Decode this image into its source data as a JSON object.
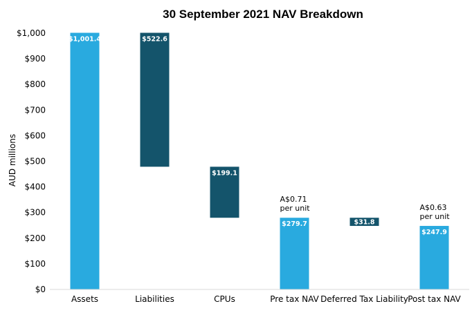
{
  "chart_data": {
    "type": "bar",
    "subtype": "waterfall",
    "title": "30 September 2021 NAV Breakdown",
    "xlabel": "",
    "ylabel": "AUD millions",
    "ylim": [
      0,
      1000
    ],
    "yticks": [
      0,
      100,
      200,
      300,
      400,
      500,
      600,
      700,
      800,
      900,
      1000
    ],
    "ytick_labels": [
      "$0",
      "$100",
      "$200",
      "$300",
      "$400",
      "$500",
      "$600",
      "$700",
      "$800",
      "$900",
      "$1,000"
    ],
    "grid": false,
    "legend": "none",
    "categories": [
      "Assets",
      "Liabilities",
      "CPUs",
      "Pre tax NAV",
      "Deferred Tax Liability",
      "Post tax NAV"
    ],
    "bars": [
      {
        "category": "Assets",
        "start": 0,
        "end": 1001.4,
        "label": "$1,001.4",
        "kind": "total"
      },
      {
        "category": "Liabilities",
        "start": 478.8,
        "end": 1001.4,
        "label": "$522.6",
        "kind": "decrease"
      },
      {
        "category": "CPUs",
        "start": 279.7,
        "end": 478.8,
        "label": "$199.1",
        "kind": "decrease"
      },
      {
        "category": "Pre tax NAV",
        "start": 0,
        "end": 279.7,
        "label": "$279.7",
        "kind": "total"
      },
      {
        "category": "Deferred Tax Liability",
        "start": 247.9,
        "end": 279.7,
        "label": "$31.8",
        "kind": "decrease"
      },
      {
        "category": "Post tax NAV",
        "start": 0,
        "end": 247.9,
        "label": "$247.9",
        "kind": "total"
      }
    ],
    "annotations": [
      {
        "category": "Pre tax NAV",
        "lines": [
          "A$0.71",
          "per unit"
        ]
      },
      {
        "category": "Post tax NAV",
        "lines": [
          "A$0.63",
          "per unit"
        ]
      }
    ],
    "colors": {
      "total": "#29aadf",
      "decrease": "#14546b"
    }
  }
}
